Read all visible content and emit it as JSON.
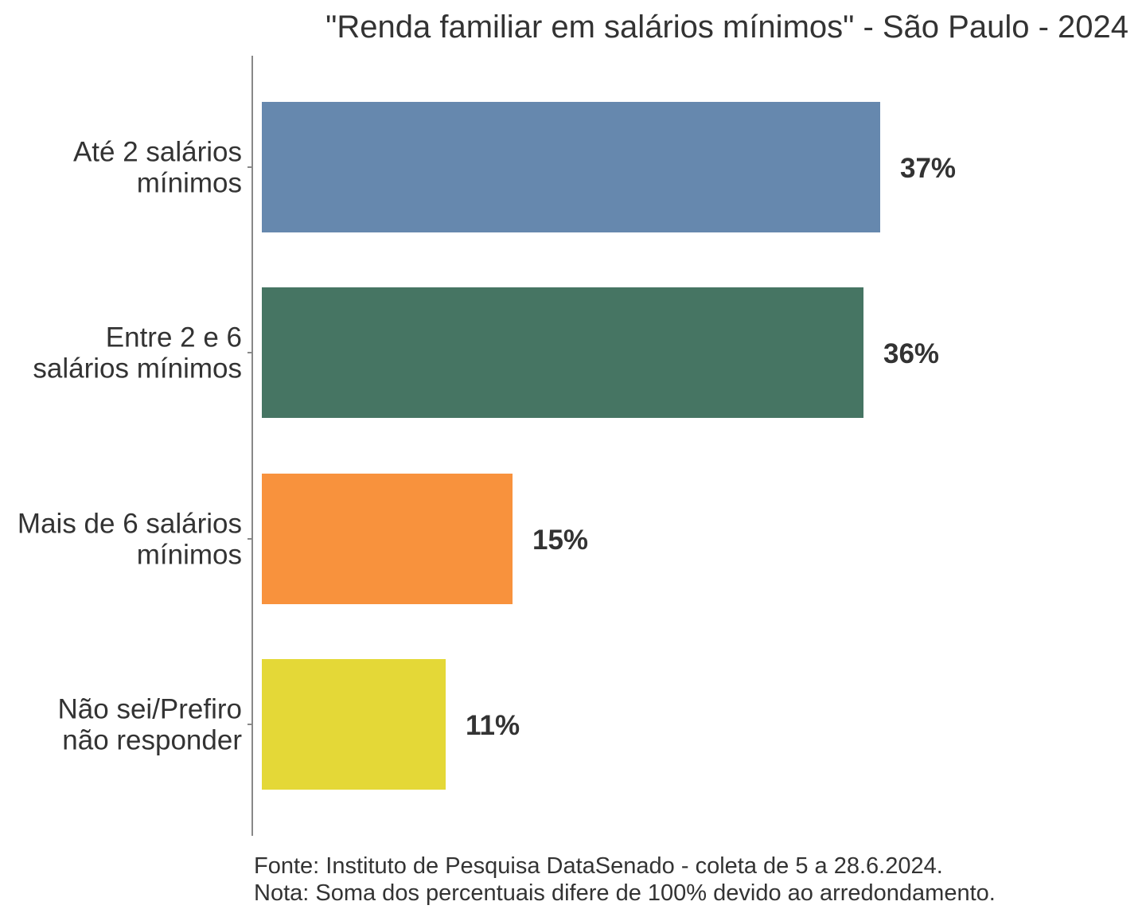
{
  "chart_data": {
    "type": "bar",
    "orientation": "horizontal",
    "title": "\"Renda familiar em salários mínimos\" - São Paulo - 2024",
    "categories": [
      [
        "Até 2 salários",
        "mínimos"
      ],
      [
        "Entre 2 e 6",
        "salários mínimos"
      ],
      [
        "Mais de 6 salários",
        "mínimos"
      ],
      [
        "Não sei/Prefiro",
        "não responder"
      ]
    ],
    "values": [
      37,
      36,
      15,
      11
    ],
    "value_labels": [
      "37%",
      "36%",
      "15%",
      "11%"
    ],
    "colors": [
      "#6688ae",
      "#467563",
      "#f8923d",
      "#e4d837"
    ],
    "xlim": [
      0,
      40
    ],
    "grid": false,
    "legend": "none"
  },
  "footer": {
    "source": "Fonte: Instituto de Pesquisa DataSenado - coleta de 5 a 28.6.2024.",
    "note": "Nota: Soma dos percentuais difere de 100% devido ao arredondamento."
  }
}
